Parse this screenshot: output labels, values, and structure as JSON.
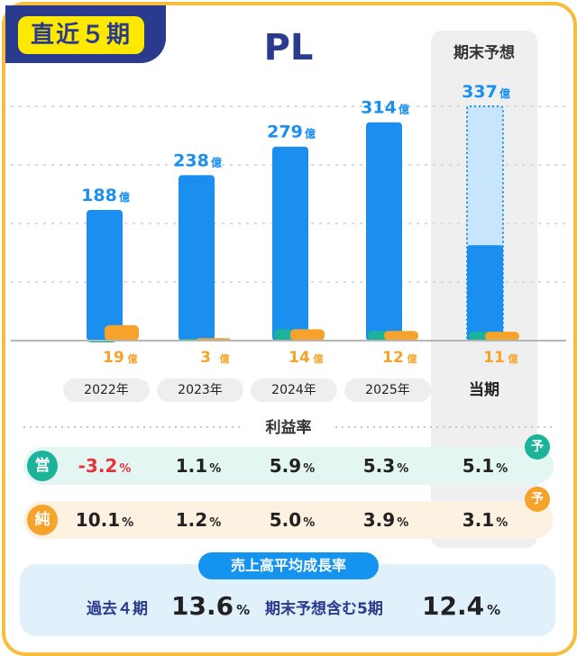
{
  "badge": "直近５期",
  "chart_data": {
    "type": "bar",
    "title": "PL",
    "unit": "億",
    "categories": [
      "2022年",
      "2023年",
      "2024年",
      "2025年",
      "当期"
    ],
    "forecast_label": "期末予想",
    "ylim": [
      0,
      337
    ],
    "series": [
      {
        "values": [
          188,
          238,
          279,
          314,
          337
        ],
        "color": "#1a8ff0"
      },
      {
        "values": [
          -2,
          1,
          14,
          12,
          11
        ],
        "color": "#1bb39a"
      },
      {
        "values": [
          19,
          3,
          14,
          12,
          11
        ],
        "color": "#f5a32a"
      }
    ],
    "revenue_labels": [
      "188",
      "238",
      "279",
      "314",
      "337"
    ],
    "profit_labels": [
      "19",
      "3",
      "14",
      "12",
      "11"
    ],
    "current_actual_revenue": 176
  },
  "profit_rate": {
    "title": "利益率",
    "operating": {
      "icon": "営",
      "values": [
        "-3.2",
        "1.1",
        "5.9",
        "5.3",
        "5.1"
      ]
    },
    "net": {
      "icon": "純",
      "values": [
        "10.1",
        "1.2",
        "5.0",
        "3.9",
        "3.1"
      ]
    },
    "unit": "%",
    "forecast_mark": "予"
  },
  "growth": {
    "title": "売上高平均成長率",
    "past_label": "過去４期",
    "past_value": "13.6",
    "forecast_label": "期末予想含む5期",
    "forecast_value": "12.4",
    "unit": "%"
  }
}
